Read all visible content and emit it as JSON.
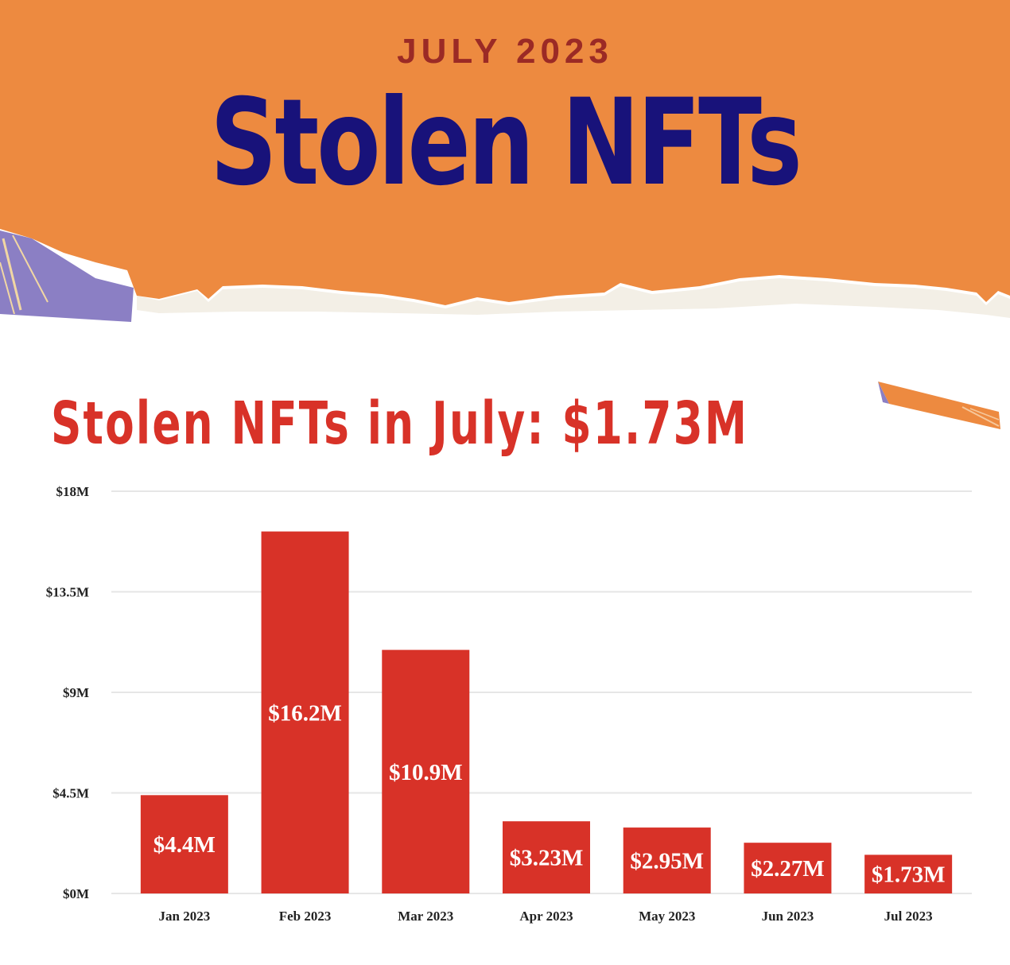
{
  "header": {
    "eyebrow": "JULY 2023",
    "title": "Stolen NFTs"
  },
  "headline": "Stolen NFTs in July: $1.73M",
  "colors": {
    "banner": "#ed8a40",
    "title": "#18127a",
    "eyebrow": "#9b2a25",
    "bar": "#d83228",
    "headline": "#d83228",
    "gridline": "#e6e6e6"
  },
  "chart_data": {
    "type": "bar",
    "categories": [
      "Jan 2023",
      "Feb 2023",
      "Mar 2023",
      "Apr 2023",
      "May 2023",
      "Jun 2023",
      "Jul 2023"
    ],
    "values": [
      4.4,
      16.2,
      10.9,
      3.23,
      2.95,
      2.27,
      1.73
    ],
    "data_labels": [
      "$4.4M",
      "$16.2M",
      "$10.9M",
      "$3.23M",
      "$2.95M",
      "$2.27M",
      "$1.73M"
    ],
    "yticks": [
      0,
      4.5,
      9,
      13.5,
      18
    ],
    "ytick_labels": [
      "$0M",
      "$4.5M",
      "$9M",
      "$13.5M",
      "$18M"
    ],
    "ylim": [
      0,
      18
    ],
    "grid": true,
    "legend": "none",
    "unit": "USD millions"
  }
}
